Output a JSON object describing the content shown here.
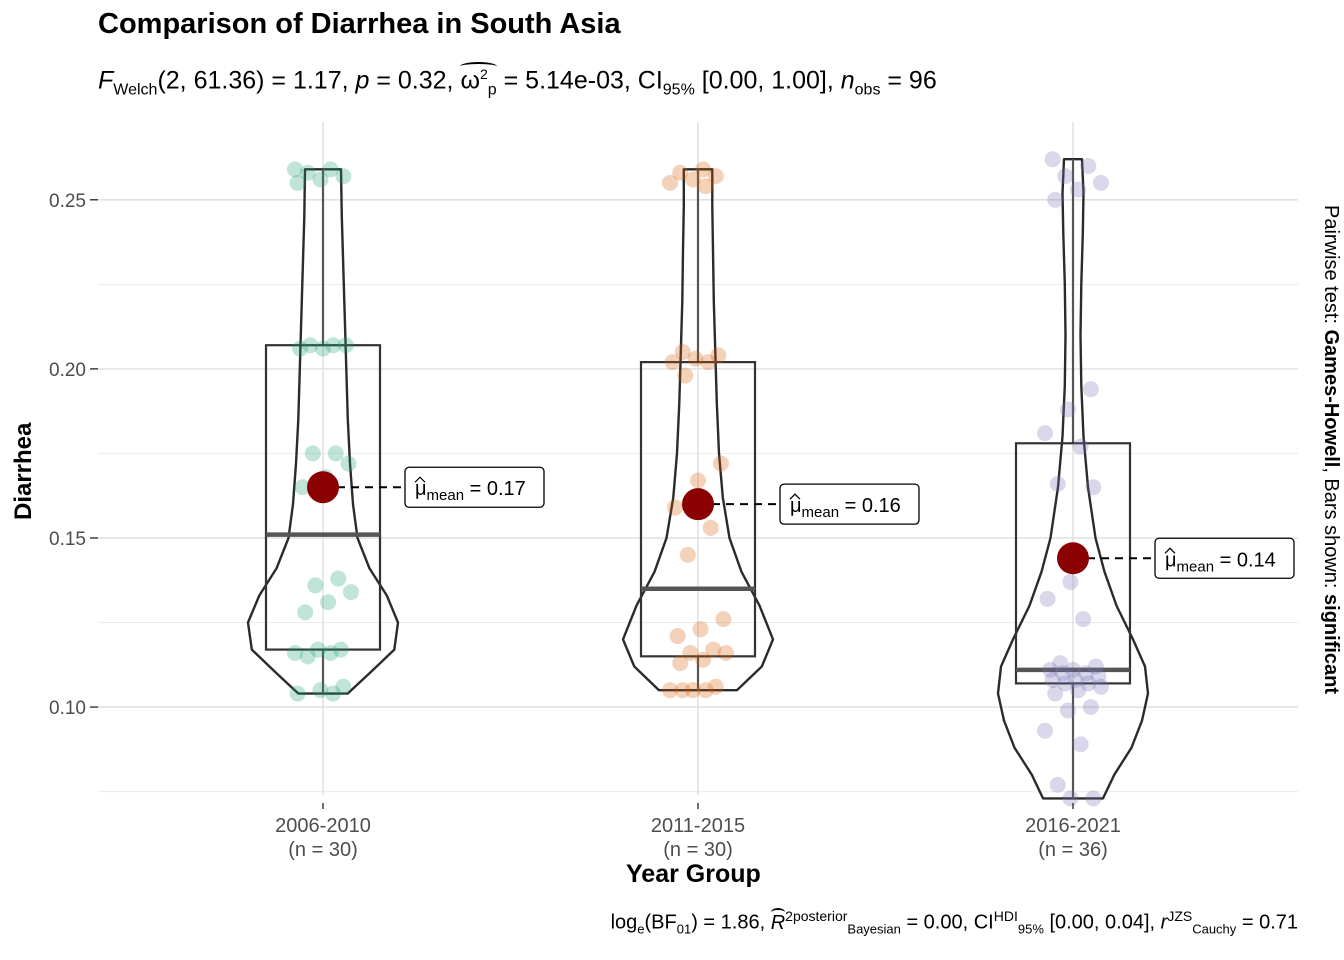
{
  "chart_data": {
    "type": "violin",
    "title": "Comparison of Diarrhea in South Asia",
    "subtitle": {
      "F_label": "F",
      "F_sub": "Welch",
      "F_args": "(2, 61.36) = 1.17, ",
      "p_label": "p",
      "p_value": " = 0.32, ",
      "omega": "ω",
      "omega_sup": "2",
      "omega_sub": "p",
      "omega_value": " = 5.14e-03, CI",
      "ci_sub": "95%",
      "ci_value": " [0.00, 1.00], ",
      "n_label": "n",
      "n_sub": "obs",
      "n_value": " = 96"
    },
    "caption": {
      "log": "log",
      "log_sub": "e",
      "bf": "(BF",
      "bf_sub": "01",
      "bf_value": ") = 1.86, ",
      "r": "R",
      "r_sup": "2",
      "r_sup2": "posterior",
      "r_sub": "Bayesian",
      "r_value": " = 0.00, CI",
      "ci_sup": "HDI",
      "ci_sub": "95%",
      "ci_value": " [0.00, 0.04], ",
      "rc": "r",
      "rc_sup": "JZS",
      "rc_sub": "Cauchy",
      "rc_value": " = 0.71"
    },
    "side_label_prefix": "Pairwise test: ",
    "side_label_test": "Games-Howell",
    "side_label_mid": ", Bars shown: ",
    "side_label_result": "significant",
    "xlabel": "Year Group",
    "ylabel": "Diarrhea",
    "ylim": [
      0.074,
      0.273
    ],
    "yticks": [
      0.1,
      0.15,
      0.2,
      0.25
    ],
    "ytick_labels": [
      "0.10",
      "0.15",
      "0.20",
      "0.25"
    ],
    "grid": true,
    "mean_label": "μ",
    "mean_sub": "mean",
    "groups": [
      {
        "category": "2006-2010",
        "n_label": "(n = 30)",
        "color": "#1b9e77",
        "mean": 0.165,
        "mean_text": " = 0.17",
        "box": {
          "q1": 0.117,
          "median": 0.151,
          "q3": 0.207,
          "whisker_low": 0.104,
          "whisker_high": 0.259
        },
        "points": [
          0.259,
          0.259,
          0.258,
          0.257,
          0.256,
          0.255,
          0.207,
          0.207,
          0.207,
          0.206,
          0.206,
          0.175,
          0.175,
          0.172,
          0.168,
          0.165,
          0.138,
          0.136,
          0.134,
          0.131,
          0.128,
          0.117,
          0.117,
          0.116,
          0.116,
          0.115,
          0.106,
          0.105,
          0.104,
          0.104
        ],
        "violin": [
          [
            0.104,
            0.33
          ],
          [
            0.11,
            0.62
          ],
          [
            0.117,
            0.95
          ],
          [
            0.125,
            1.0
          ],
          [
            0.133,
            0.85
          ],
          [
            0.141,
            0.62
          ],
          [
            0.15,
            0.46
          ],
          [
            0.16,
            0.4
          ],
          [
            0.172,
            0.36
          ],
          [
            0.185,
            0.33
          ],
          [
            0.2,
            0.31
          ],
          [
            0.215,
            0.29
          ],
          [
            0.23,
            0.27
          ],
          [
            0.245,
            0.25
          ],
          [
            0.259,
            0.24
          ]
        ]
      },
      {
        "category": "2011-2015",
        "n_label": "(n = 30)",
        "color": "#d95f02",
        "mean": 0.16,
        "mean_text": " = 0.16",
        "box": {
          "q1": 0.115,
          "median": 0.135,
          "q3": 0.202,
          "whisker_low": 0.105,
          "whisker_high": 0.259
        },
        "points": [
          0.259,
          0.258,
          0.257,
          0.256,
          0.255,
          0.254,
          0.205,
          0.204,
          0.203,
          0.202,
          0.202,
          0.198,
          0.172,
          0.167,
          0.159,
          0.153,
          0.145,
          0.126,
          0.123,
          0.121,
          0.117,
          0.116,
          0.116,
          0.114,
          0.113,
          0.106,
          0.105,
          0.105,
          0.105,
          0.105
        ],
        "violin": [
          [
            0.105,
            0.52
          ],
          [
            0.112,
            0.85
          ],
          [
            0.12,
            1.0
          ],
          [
            0.13,
            0.82
          ],
          [
            0.14,
            0.58
          ],
          [
            0.15,
            0.42
          ],
          [
            0.162,
            0.33
          ],
          [
            0.175,
            0.28
          ],
          [
            0.19,
            0.25
          ],
          [
            0.205,
            0.23
          ],
          [
            0.22,
            0.21
          ],
          [
            0.235,
            0.2
          ],
          [
            0.248,
            0.19
          ],
          [
            0.259,
            0.19
          ]
        ]
      },
      {
        "category": "2016-2021",
        "n_label": "(n = 36)",
        "color": "#7570b3",
        "mean": 0.144,
        "mean_text": " = 0.14",
        "box": {
          "q1": 0.107,
          "median": 0.111,
          "q3": 0.178,
          "whisker_low": 0.073,
          "whisker_high": 0.262
        },
        "points": [
          0.262,
          0.26,
          0.257,
          0.255,
          0.253,
          0.25,
          0.194,
          0.188,
          0.181,
          0.177,
          0.166,
          0.165,
          0.137,
          0.132,
          0.126,
          0.113,
          0.112,
          0.111,
          0.111,
          0.11,
          0.11,
          0.109,
          0.108,
          0.108,
          0.107,
          0.107,
          0.106,
          0.105,
          0.104,
          0.1,
          0.099,
          0.093,
          0.089,
          0.077,
          0.073,
          0.073
        ],
        "violin": [
          [
            0.073,
            0.4
          ],
          [
            0.08,
            0.55
          ],
          [
            0.088,
            0.78
          ],
          [
            0.096,
            0.92
          ],
          [
            0.104,
            1.0
          ],
          [
            0.112,
            0.96
          ],
          [
            0.12,
            0.8
          ],
          [
            0.13,
            0.58
          ],
          [
            0.14,
            0.42
          ],
          [
            0.15,
            0.3
          ],
          [
            0.165,
            0.2
          ],
          [
            0.18,
            0.14
          ],
          [
            0.195,
            0.11
          ],
          [
            0.21,
            0.1
          ],
          [
            0.225,
            0.11
          ],
          [
            0.24,
            0.13
          ],
          [
            0.252,
            0.14
          ],
          [
            0.262,
            0.12
          ]
        ]
      }
    ]
  }
}
